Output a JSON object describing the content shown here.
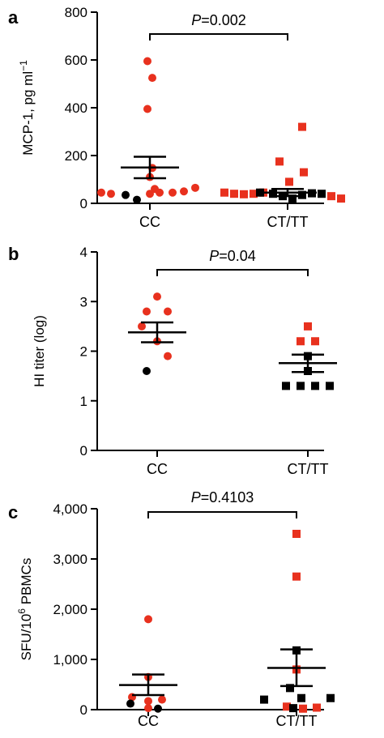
{
  "chart_data": [
    {
      "panel": "a",
      "type": "scatter",
      "ylabel": "MCP-1, pg ml",
      "ylabel_sup": "−1",
      "ylim": [
        0,
        800
      ],
      "yticks": [
        0,
        200,
        400,
        600,
        800
      ],
      "ytick_labels": [
        "0",
        "200",
        "400",
        "600",
        "800"
      ],
      "categories": [
        "CC",
        "CT/TT"
      ],
      "p_italic": "P",
      "p_value": "=0.002",
      "groups": [
        {
          "category": "CC",
          "marker": "circle",
          "mean": 150,
          "sem_low": 105,
          "sem_high": 195,
          "points": [
            {
              "y": 595,
              "color": "#e8311e"
            },
            {
              "y": 525,
              "color": "#e8311e"
            },
            {
              "y": 395,
              "color": "#e8311e"
            },
            {
              "y": 148,
              "color": "#e8311e"
            },
            {
              "y": 110,
              "color": "#e8311e"
            },
            {
              "y": 60,
              "color": "#e8311e"
            },
            {
              "y": 45,
              "color": "#e8311e"
            },
            {
              "y": 40,
              "color": "#e8311e"
            },
            {
              "y": 35,
              "color": "#000000"
            },
            {
              "y": 15,
              "color": "#000000"
            },
            {
              "y": 40,
              "color": "#e8311e"
            },
            {
              "y": 45,
              "color": "#e8311e"
            },
            {
              "y": 45,
              "color": "#e8311e"
            },
            {
              "y": 50,
              "color": "#e8311e"
            },
            {
              "y": 65,
              "color": "#e8311e"
            }
          ]
        },
        {
          "category": "CT/TT",
          "marker": "square",
          "mean": 45,
          "sem_low": 30,
          "sem_high": 60,
          "points": [
            {
              "y": 320,
              "color": "#e8311e"
            },
            {
              "y": 175,
              "color": "#e8311e"
            },
            {
              "y": 130,
              "color": "#e8311e"
            },
            {
              "y": 90,
              "color": "#e8311e"
            },
            {
              "y": 45,
              "color": "#e8311e"
            },
            {
              "y": 40,
              "color": "#e8311e"
            },
            {
              "y": 38,
              "color": "#e8311e"
            },
            {
              "y": 40,
              "color": "#e8311e"
            },
            {
              "y": 45,
              "color": "#e8311e"
            },
            {
              "y": 40,
              "color": "#000000"
            },
            {
              "y": 30,
              "color": "#000000"
            },
            {
              "y": 20,
              "color": "#000000"
            },
            {
              "y": 35,
              "color": "#000000"
            },
            {
              "y": 42,
              "color": "#000000"
            },
            {
              "y": 40,
              "color": "#000000"
            },
            {
              "y": 30,
              "color": "#e8311e"
            },
            {
              "y": 20,
              "color": "#e8311e"
            },
            {
              "y": 45,
              "color": "#000000"
            }
          ]
        }
      ]
    },
    {
      "panel": "b",
      "type": "scatter",
      "ylabel": "HI titer (log)",
      "ylabel_sup": "",
      "ylim": [
        0,
        4
      ],
      "yticks": [
        0,
        1,
        2,
        3,
        4
      ],
      "ytick_labels": [
        "0",
        "1",
        "2",
        "3",
        "4"
      ],
      "categories": [
        "CC",
        "CT/TT"
      ],
      "p_italic": "P",
      "p_value": "=0.04",
      "groups": [
        {
          "category": "CC",
          "marker": "circle",
          "mean": 2.38,
          "sem_low": 2.18,
          "sem_high": 2.58,
          "points": [
            {
              "y": 3.1,
              "color": "#e8311e"
            },
            {
              "y": 2.8,
              "color": "#e8311e"
            },
            {
              "y": 2.8,
              "color": "#e8311e"
            },
            {
              "y": 2.5,
              "color": "#e8311e"
            },
            {
              "y": 2.2,
              "color": "#e8311e"
            },
            {
              "y": 1.9,
              "color": "#e8311e"
            },
            {
              "y": 1.6,
              "color": "#000000"
            }
          ]
        },
        {
          "category": "CT/TT",
          "marker": "square",
          "mean": 1.76,
          "sem_low": 1.58,
          "sem_high": 1.93,
          "points": [
            {
              "y": 2.5,
              "color": "#e8311e"
            },
            {
              "y": 2.2,
              "color": "#e8311e"
            },
            {
              "y": 2.2,
              "color": "#e8311e"
            },
            {
              "y": 1.9,
              "color": "#000000"
            },
            {
              "y": 1.6,
              "color": "#000000"
            },
            {
              "y": 1.3,
              "color": "#000000"
            },
            {
              "y": 1.3,
              "color": "#000000"
            },
            {
              "y": 1.3,
              "color": "#000000"
            },
            {
              "y": 1.3,
              "color": "#000000"
            }
          ]
        }
      ]
    },
    {
      "panel": "c",
      "type": "scatter",
      "ylabel": "SFU/10",
      "ylabel_sup": "6",
      "ylabel_suffix": " PBMCs",
      "ylim": [
        0,
        4000
      ],
      "yticks": [
        0,
        1000,
        2000,
        3000,
        4000
      ],
      "ytick_labels": [
        "0",
        "1,000",
        "2,000",
        "3,000",
        "4,000"
      ],
      "categories": [
        "CC",
        "CT/TT"
      ],
      "p_italic": "P",
      "p_value": "=0.4103",
      "groups": [
        {
          "category": "CC",
          "marker": "circle",
          "mean": 490,
          "sem_low": 290,
          "sem_high": 700,
          "points": [
            {
              "y": 1800,
              "color": "#e8311e"
            },
            {
              "y": 650,
              "color": "#e8311e"
            },
            {
              "y": 250,
              "color": "#e8311e"
            },
            {
              "y": 200,
              "color": "#e8311e"
            },
            {
              "y": 170,
              "color": "#e8311e"
            },
            {
              "y": 120,
              "color": "#000000"
            },
            {
              "y": 30,
              "color": "#e8311e"
            },
            {
              "y": 20,
              "color": "#000000"
            }
          ]
        },
        {
          "category": "CT/TT",
          "marker": "square",
          "mean": 830,
          "sem_low": 470,
          "sem_high": 1200,
          "points": [
            {
              "y": 3500,
              "color": "#e8311e"
            },
            {
              "y": 2650,
              "color": "#e8311e"
            },
            {
              "y": 1180,
              "color": "#000000"
            },
            {
              "y": 800,
              "color": "#e8311e"
            },
            {
              "y": 430,
              "color": "#000000"
            },
            {
              "y": 230,
              "color": "#000000"
            },
            {
              "y": 200,
              "color": "#000000"
            },
            {
              "y": 230,
              "color": "#000000"
            },
            {
              "y": 60,
              "color": "#e8311e"
            },
            {
              "y": 40,
              "color": "#e8311e"
            },
            {
              "y": 30,
              "color": "#000000"
            },
            {
              "y": 20,
              "color": "#e8311e"
            }
          ]
        }
      ]
    }
  ]
}
